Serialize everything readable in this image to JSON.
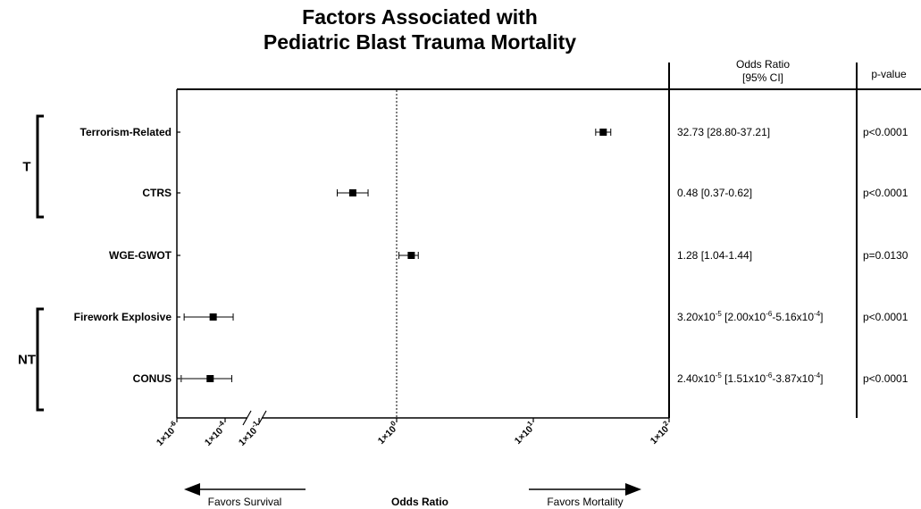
{
  "chart_data": {
    "type": "forest",
    "title": [
      "Factors Associated with",
      "Pediatric Blast Trauma Mortality"
    ],
    "xlabel": "Odds Ratio",
    "x_scale": "log",
    "x_axis_break": true,
    "x_ticks": [
      {
        "value": 1e-06,
        "base": "1×10",
        "exp": "-6"
      },
      {
        "value": 0.0001,
        "base": "1×10",
        "exp": "-4"
      },
      {
        "value": 0.1,
        "base": "1×10",
        "exp": "-1"
      },
      {
        "value": 1,
        "base": "1×10",
        "exp": "0"
      },
      {
        "value": 10,
        "base": "1×10",
        "exp": "1"
      },
      {
        "value": 100,
        "base": "1×10",
        "exp": "2"
      }
    ],
    "reference_line": 1,
    "arrows": {
      "left": "Favors Survival",
      "right": "Favors Mortality"
    },
    "table_headers": {
      "or_line1": "Odds Ratio",
      "or_line2": "[95% CI]",
      "p": "p-value"
    },
    "groups": [
      {
        "label": "T",
        "rows": [
          0,
          1
        ]
      },
      {
        "label": "NT",
        "rows": [
          3,
          4
        ]
      }
    ],
    "rows": [
      {
        "label": "Terrorism-Related",
        "or": 32.73,
        "lo": 28.8,
        "hi": 37.21,
        "or_text": [
          {
            "t": "32.73 [28.80-37.21]"
          }
        ],
        "p": "p<0.0001"
      },
      {
        "label": "CTRS",
        "or": 0.48,
        "lo": 0.37,
        "hi": 0.62,
        "or_text": [
          {
            "t": "0.48 [0.37-0.62]"
          }
        ],
        "p": "p<0.0001"
      },
      {
        "label": "WGE-GWOT",
        "or": 1.28,
        "lo": 1.04,
        "hi": 1.44,
        "or_text": [
          {
            "t": "1.28 [1.04-1.44]"
          }
        ],
        "p": "p=0.0130"
      },
      {
        "label": "Firework Explosive",
        "or": 3.2e-05,
        "lo": 2e-06,
        "hi": 0.000516,
        "or_text": [
          {
            "t": "3.20x10"
          },
          {
            "t": "-5",
            "sup": true
          },
          {
            "t": " [2.00x10"
          },
          {
            "t": "-6",
            "sup": true
          },
          {
            "t": "-5.16x10"
          },
          {
            "t": "-4",
            "sup": true
          },
          {
            "t": "]"
          }
        ],
        "p": "p<0.0001"
      },
      {
        "label": "CONUS",
        "or": 2.4e-05,
        "lo": 1.51e-06,
        "hi": 0.000387,
        "or_text": [
          {
            "t": "2.40x10"
          },
          {
            "t": "-5",
            "sup": true
          },
          {
            "t": " [1.51x10"
          },
          {
            "t": "-6",
            "sup": true
          },
          {
            "t": "-3.87x10"
          },
          {
            "t": "-4",
            "sup": true
          },
          {
            "t": "]"
          }
        ],
        "p": "p<0.0001"
      }
    ]
  }
}
